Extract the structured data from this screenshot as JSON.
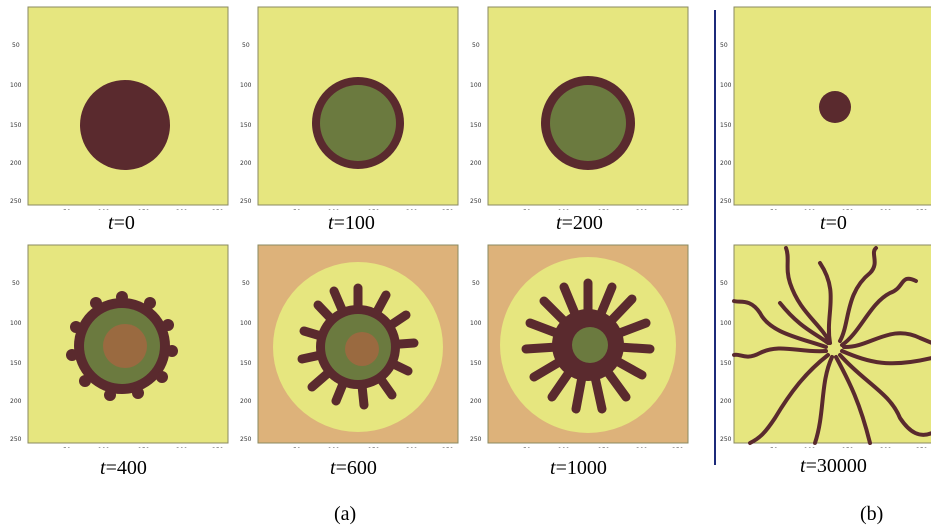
{
  "panels_a": [
    {
      "time": "0"
    },
    {
      "time": "100"
    },
    {
      "time": "200"
    },
    {
      "time": "400"
    },
    {
      "time": "600"
    },
    {
      "time": "1000"
    }
  ],
  "panels_b": [
    {
      "time": "0"
    },
    {
      "time": "30000"
    }
  ],
  "t_symbol": "t",
  "equals": "=",
  "y_ticks": [
    "50",
    "100",
    "150",
    "200",
    "250"
  ],
  "x_ticks": [
    "50",
    "100",
    "150",
    "200",
    "250"
  ],
  "sublabels": {
    "a": "(a)",
    "b": "(b)"
  },
  "colors": {
    "background": "#e6e67f",
    "outer_ring": "#ddb27a",
    "dark_phase": "#5a2a2e",
    "green_phase": "#6b7a3f",
    "core_phase": "#9a6a40",
    "divider": "#1c2a7a"
  }
}
